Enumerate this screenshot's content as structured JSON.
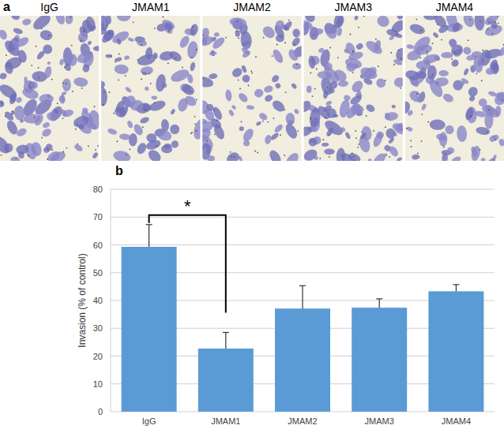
{
  "panel_labels": [
    "a",
    "b"
  ],
  "image_labels": [
    "IgG",
    "JMAM1",
    "JMAM2",
    "JMAM3",
    "JMAM4"
  ],
  "chart_data": {
    "type": "bar",
    "y_label": "Invasion (% of control)",
    "categories": [
      "IgG",
      "JMAM1",
      "JMAM2",
      "JMAM3",
      "JMAM4"
    ],
    "values": [
      59.3,
      22.7,
      37.1,
      37.4,
      43.3
    ],
    "errors": [
      8.0,
      5.8,
      8.2,
      3.2,
      2.4
    ],
    "color": "#5b9bd5",
    "ylim": [
      0,
      80
    ],
    "yticks": [
      0,
      10,
      20,
      30,
      40,
      50,
      60,
      70,
      80
    ],
    "grid": true,
    "annotations": [
      {
        "text": "*",
        "between": [
          "IgG",
          "JMAM1"
        ]
      }
    ]
  }
}
